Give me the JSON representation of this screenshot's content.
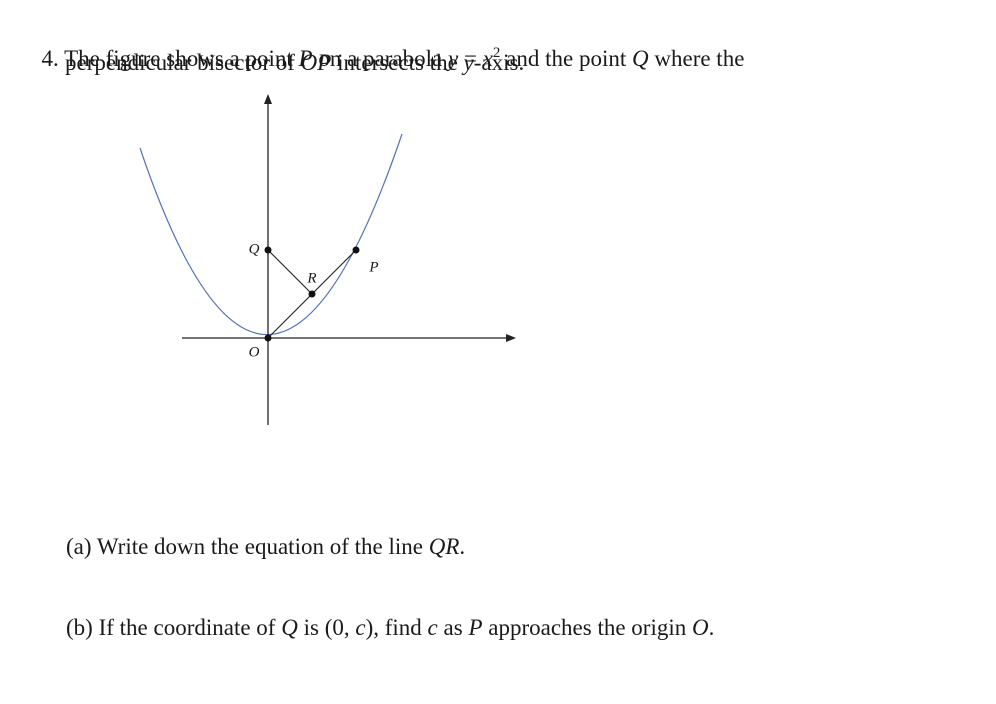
{
  "problem": {
    "number": "4.",
    "line1": [
      "The figure shows a point ",
      "P",
      " on a parabola ",
      "y",
      " = ",
      "x",
      "2",
      " and the point ",
      "Q",
      " where the"
    ],
    "line2": [
      "perpendicular bisector of ",
      "OP",
      " intersects the ",
      "y",
      "-axis."
    ]
  },
  "figure": {
    "labels": {
      "Q": "Q",
      "R": "R",
      "P": "P",
      "O": "O"
    }
  },
  "parts": [
    {
      "label": "(a)",
      "text": [
        "Write down the equation of the line ",
        "QR",
        "."
      ]
    },
    {
      "label": "(b)",
      "text": [
        "If the coordinate of ",
        "Q",
        " is (0, ",
        "c",
        "), find ",
        "c",
        " as ",
        "P",
        " approaches the origin ",
        "O",
        "."
      ]
    }
  ]
}
